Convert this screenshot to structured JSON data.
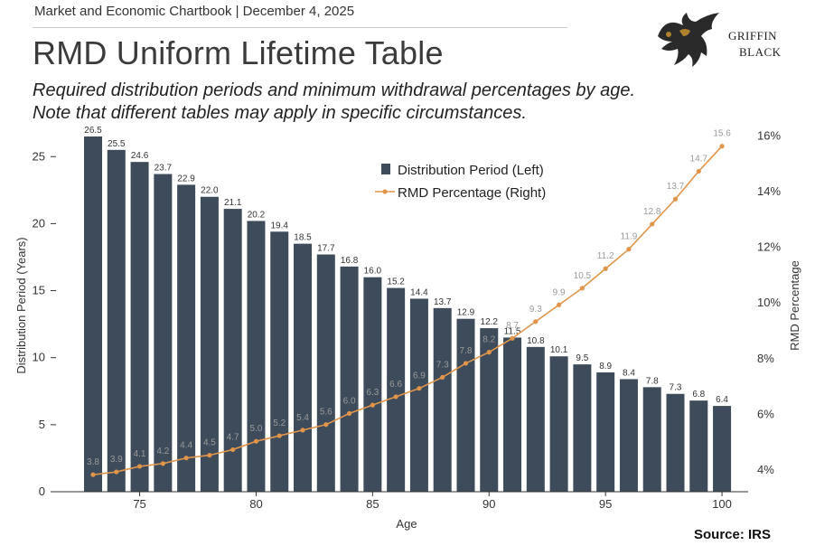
{
  "header": "Market and Economic Chartbook | December 4, 2025",
  "brand": {
    "name_line1": "Griffin",
    "name_line2": "Black",
    "logo_icon": "griffin-crest-icon"
  },
  "source": "Source: IRS",
  "colors": {
    "bar": "#3d4b5b",
    "line": "#e0954a",
    "line_label": "#9a9a9a",
    "text": "#333333"
  },
  "chart_data": {
    "type": "bar",
    "title": "RMD Uniform Lifetime Table",
    "subtitle_line1": "Required distribution periods and minimum withdrawal percentages by age.",
    "subtitle_line2": "Note that different tables may apply in specific circumstances.",
    "xlabel": "Age",
    "ylabel": "Distribution Period (Years)",
    "y2label": "RMD Percentage",
    "x": [
      73,
      74,
      75,
      76,
      77,
      78,
      79,
      80,
      81,
      82,
      83,
      84,
      85,
      86,
      87,
      88,
      89,
      90,
      91,
      92,
      93,
      94,
      95,
      96,
      97,
      98,
      99,
      100
    ],
    "x_ticks": [
      75,
      80,
      85,
      90,
      95,
      100
    ],
    "ylim": [
      0,
      27
    ],
    "y_ticks": [
      0,
      5,
      10,
      15,
      20,
      25
    ],
    "y2lim": [
      3,
      16.5
    ],
    "y2_ticks": [
      4,
      6,
      8,
      10,
      12,
      14,
      16
    ],
    "y2_tick_suffix": "%",
    "legend_position": "top-center",
    "grid": false,
    "series": [
      {
        "name": "Distribution Period (Left)",
        "type": "bar",
        "axis": "left",
        "values": [
          26.5,
          25.5,
          24.6,
          23.7,
          22.9,
          22.0,
          21.1,
          20.2,
          19.4,
          18.5,
          17.7,
          16.8,
          16.0,
          15.2,
          14.4,
          13.7,
          12.9,
          12.2,
          11.5,
          10.8,
          10.1,
          9.5,
          8.9,
          8.4,
          7.8,
          7.3,
          6.8,
          6.4
        ]
      },
      {
        "name": "RMD Percentage (Right)",
        "type": "line",
        "axis": "right",
        "values": [
          3.8,
          3.9,
          4.1,
          4.2,
          4.4,
          4.5,
          4.7,
          5.0,
          5.2,
          5.4,
          5.6,
          6.0,
          6.3,
          6.6,
          6.9,
          7.3,
          7.8,
          8.2,
          8.7,
          9.3,
          9.9,
          10.5,
          11.2,
          11.9,
          12.8,
          13.7,
          14.7,
          15.6
        ]
      }
    ]
  }
}
